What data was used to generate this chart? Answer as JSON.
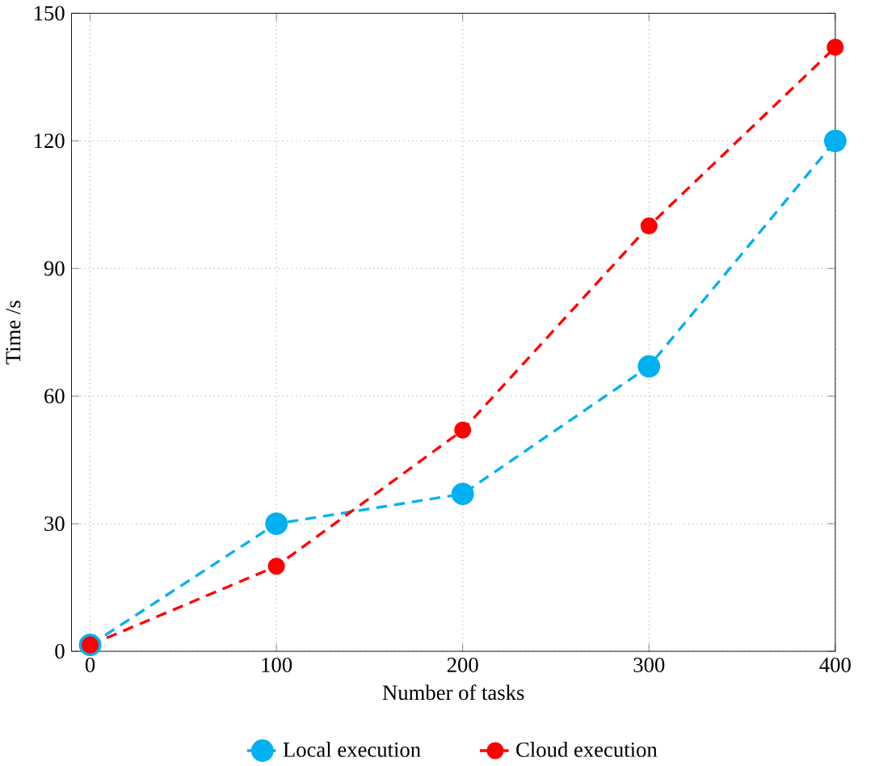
{
  "chart_data": {
    "type": "line",
    "xlabel": "Number of tasks",
    "ylabel": "Time /s",
    "x": [
      0,
      100,
      200,
      300,
      400
    ],
    "series": [
      {
        "name": "Local execution",
        "color": "#00b0f0",
        "values": [
          1.5,
          30,
          37,
          67,
          120
        ]
      },
      {
        "name": "Cloud execution",
        "color": "#ff0000",
        "values": [
          1.5,
          20,
          52,
          100,
          142
        ]
      }
    ],
    "xlim": [
      -10,
      400
    ],
    "ylim": [
      0,
      150
    ],
    "xticks": [
      0,
      100,
      200,
      300,
      400
    ],
    "yticks": [
      0,
      30,
      60,
      90,
      120,
      150
    ],
    "grid": true,
    "legend": "bottom",
    "marker": "circle",
    "line_style": "dashed"
  }
}
